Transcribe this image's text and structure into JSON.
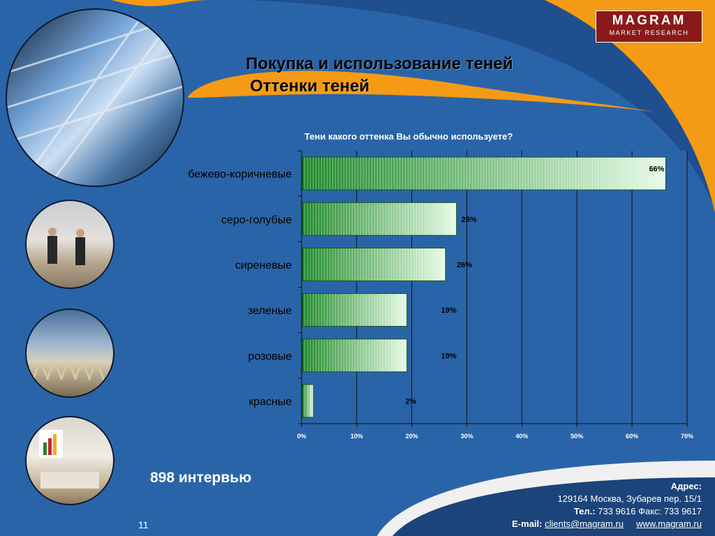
{
  "logo": {
    "name": "MAGRAM",
    "tagline": "MARKET RESEARCH"
  },
  "slide": {
    "title": "Покупка и использование теней",
    "subtitle": "Оттенки теней",
    "question": "Тени какого оттенка Вы обычно используете?",
    "sample": "898 интервью",
    "page_number": "11"
  },
  "contact": {
    "header": "Адрес:",
    "address": "129164 Москва, Зубарев пер. 15/1",
    "tel_label": "Тел.:",
    "tel": "733 9616",
    "fax_label": "Факс:",
    "fax": "733 9617",
    "email_label": "E-mail:",
    "email": "clients@magram.ru",
    "web": "www.magram.ru"
  },
  "colors": {
    "background": "#2a64a8",
    "accent_orange": "#f59a14",
    "bar_dark": "#1f8a2a",
    "bar_light": "#e6fbe6",
    "logo": "#8a1a1a"
  },
  "chart_data": {
    "type": "bar",
    "orientation": "horizontal",
    "categories": [
      "бежево-коричневые",
      "серо-голубые",
      "сиреневые",
      "зеленые",
      "розовые",
      "красные"
    ],
    "values": [
      66,
      28,
      26,
      19,
      19,
      2
    ],
    "value_labels": [
      "66%",
      "28%",
      "26%",
      "19%",
      "19%",
      "2%"
    ],
    "x_ticks": [
      "0%",
      "10%",
      "20%",
      "30%",
      "40%",
      "50%",
      "60%",
      "70%"
    ],
    "xlim": [
      0,
      70
    ],
    "grid": true,
    "legend": "none"
  }
}
